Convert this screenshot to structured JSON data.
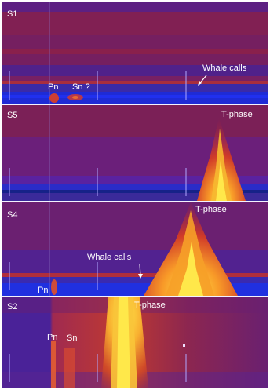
{
  "stations": [
    {
      "id": "S1",
      "label": "S1"
    },
    {
      "id": "S5",
      "label": "S5"
    },
    {
      "id": "S4",
      "label": "S4"
    },
    {
      "id": "S2",
      "label": "S2"
    }
  ],
  "annotations": {
    "s1_pn": "Pn",
    "s1_sn": "Sn ?",
    "s1_whale": "Whale calls",
    "s5_tphase": "T-phase",
    "s4_tphase": "T-phase",
    "s4_whale": "Whale calls",
    "s4_pn": "Pn",
    "s2_tphase": "T-phase",
    "s2_pn": "Pn",
    "s2_sn": "Sn"
  },
  "colors": {
    "background": "#3a1c8a",
    "noise_purple": "#5a2186",
    "noise_red": "#8c2146",
    "band_blue": "#1e2bd6",
    "peak_yellow": "#ffe84a",
    "divider": "#f3f3ff",
    "text": "#ffffff"
  }
}
